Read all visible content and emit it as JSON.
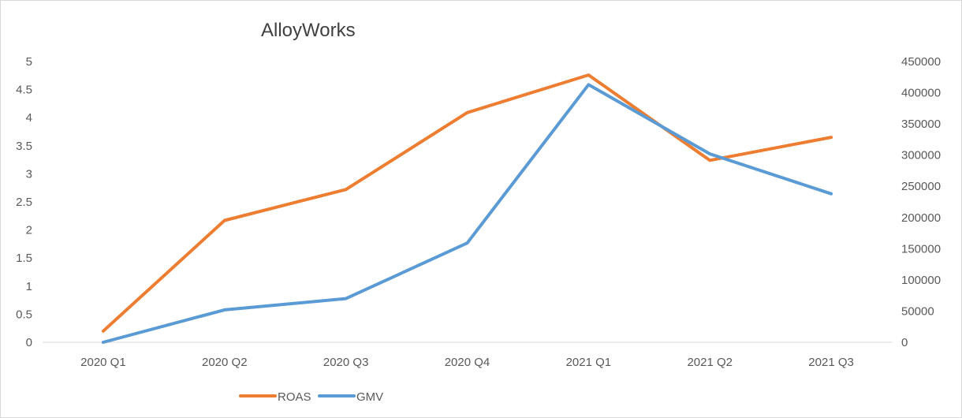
{
  "chart_data": {
    "type": "line",
    "title": "AlloyWorks",
    "categories": [
      "2020 Q1",
      "2020 Q2",
      "2020 Q3",
      "2020 Q4",
      "2021 Q1",
      "2021 Q2",
      "2021 Q3"
    ],
    "y_left": {
      "ylim": [
        0,
        5
      ],
      "ticks": [
        "0",
        "0.5",
        "1",
        "1.5",
        "2",
        "2.5",
        "3",
        "3.5",
        "4",
        "4.5",
        "5"
      ]
    },
    "y_right": {
      "ylim": [
        0,
        450000
      ],
      "ticks": [
        "0",
        "50000",
        "100000",
        "150000",
        "200000",
        "250000",
        "300000",
        "350000",
        "400000",
        "450000"
      ]
    },
    "series": [
      {
        "name": "ROAS",
        "axis": "left",
        "color": "#ED7D31",
        "values": [
          0.2,
          2.17,
          2.72,
          4.09,
          4.76,
          3.24,
          3.65
        ]
      },
      {
        "name": "GMV",
        "axis": "right",
        "color": "#5B9BD5",
        "values": [
          0,
          52000,
          70000,
          159000,
          413000,
          302000,
          238000
        ]
      }
    ],
    "grid": false,
    "legend": "bottom"
  }
}
